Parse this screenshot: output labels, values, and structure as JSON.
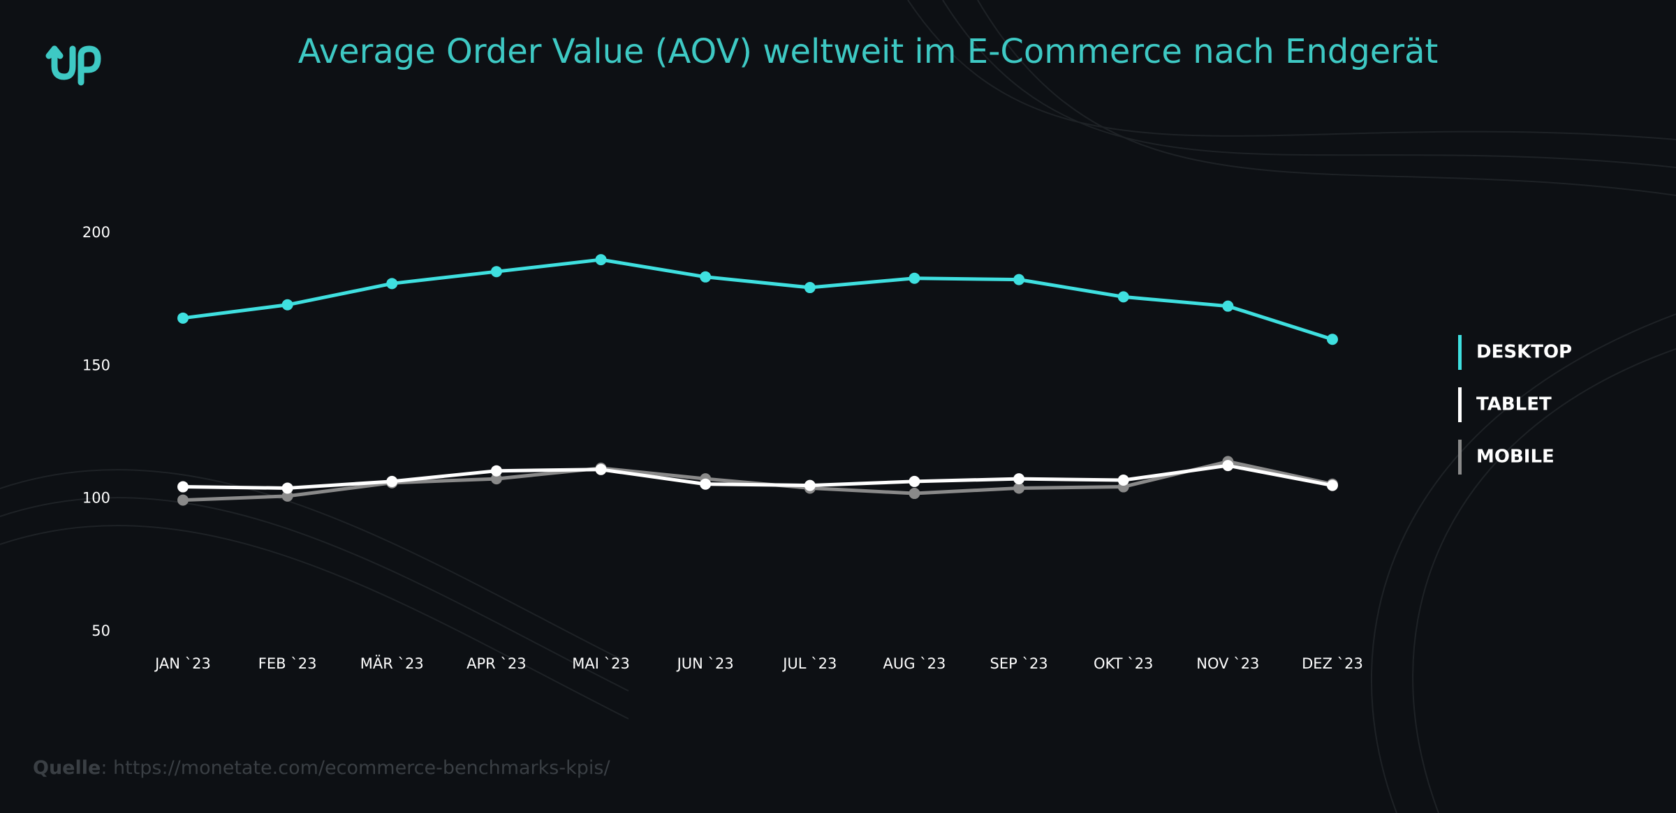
{
  "chart_data": {
    "type": "line",
    "title": "Average Order Value (AOV) weltweit im E-Commerce nach Endgerät",
    "categories": [
      "JAN `23",
      "FEB `23",
      "MÄR `23",
      "APR `23",
      "MAI `23",
      "JUN `23",
      "JUL `23",
      "AUG `23",
      "SEP `23",
      "OKT `23",
      "NOV `23",
      "DEZ `23"
    ],
    "series": [
      {
        "name": "DESKTOP",
        "color": "#3fe0e0",
        "values": [
          168,
          173,
          181,
          185.5,
          190,
          183.5,
          179.5,
          183,
          182.5,
          176,
          172.5,
          160
        ]
      },
      {
        "name": "TABLET",
        "color": "#ffffff",
        "values": [
          104.5,
          104,
          106.5,
          110.5,
          111,
          105.5,
          105,
          106.5,
          107.5,
          107,
          112.5,
          105
        ]
      },
      {
        "name": "MOBILE",
        "color": "#8a8a8a",
        "values": [
          99.5,
          101,
          106,
          107.5,
          111.5,
          107.5,
          104,
          102,
          104,
          104.5,
          114,
          105.5
        ]
      }
    ],
    "ylim": [
      50,
      200
    ],
    "yticks": [
      50,
      100,
      150,
      200
    ],
    "grid": false,
    "legend": "right",
    "source": {
      "label": "Quelle",
      "text": ": https://monetate.com/ecommerce-benchmarks-kpis/"
    }
  }
}
